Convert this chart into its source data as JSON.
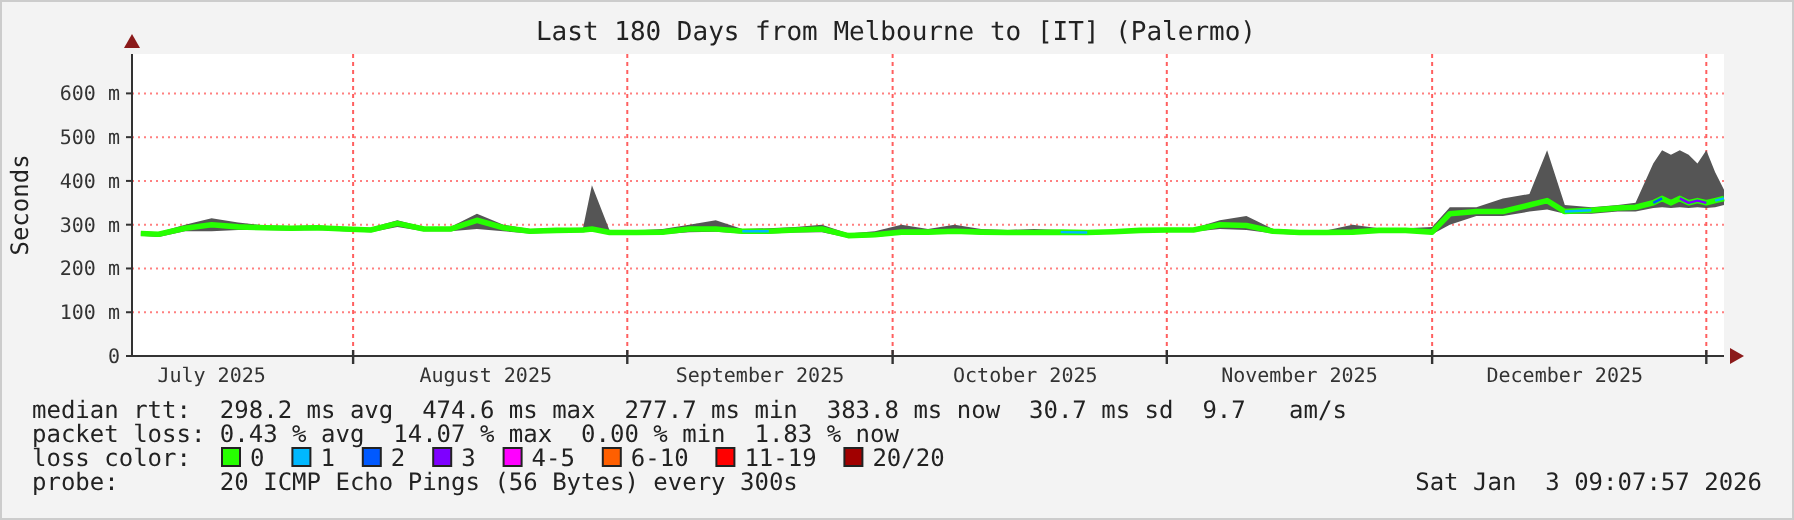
{
  "chart_data": {
    "type": "line",
    "title": "Last 180 Days from Melbourne to [IT] (Palermo)",
    "ylabel": "Seconds",
    "legend_title": "loss color:",
    "legend": "bottom",
    "grid": true,
    "line_style": "solid",
    "xlim": [
      "2025-07-07",
      "2026-01-03"
    ],
    "xticks": [
      {
        "value": "2025-07-16",
        "label": "July 2025"
      },
      {
        "value": "2025-08-01",
        "label": null
      },
      {
        "value": "2025-08-16",
        "label": "August 2025"
      },
      {
        "value": "2025-09-01",
        "label": null
      },
      {
        "value": "2025-09-16",
        "label": "September 2025"
      },
      {
        "value": "2025-10-01",
        "label": null
      },
      {
        "value": "2025-10-16",
        "label": "October 2025"
      },
      {
        "value": "2025-11-01",
        "label": null
      },
      {
        "value": "2025-11-16",
        "label": "November 2025"
      },
      {
        "value": "2025-12-01",
        "label": null
      },
      {
        "value": "2025-12-16",
        "label": "December 2025"
      },
      {
        "value": "2026-01-01",
        "label": null
      }
    ],
    "ylim": [
      0,
      690
    ],
    "yticks": [
      0,
      {
        "value": 100,
        "label": "100 m"
      },
      {
        "value": 200,
        "label": "200 m"
      },
      {
        "value": 300,
        "label": "300 m"
      },
      {
        "value": 400,
        "label": "400 m"
      },
      {
        "value": 500,
        "label": "500 m"
      },
      {
        "value": 600,
        "label": "600 m"
      }
    ],
    "x": [
      "2025-07-08",
      "2025-07-10",
      "2025-07-13",
      "2025-07-16",
      "2025-07-19",
      "2025-07-22",
      "2025-07-25",
      "2025-07-28",
      "2025-07-31",
      "2025-08-03",
      "2025-08-06",
      "2025-08-09",
      "2025-08-12",
      "2025-08-15",
      "2025-08-18",
      "2025-08-21",
      "2025-08-24",
      "2025-08-27",
      "2025-08-28",
      "2025-08-30",
      "2025-09-02",
      "2025-09-05",
      "2025-09-08",
      "2025-09-11",
      "2025-09-14",
      "2025-09-17",
      "2025-09-20",
      "2025-09-23",
      "2025-09-26",
      "2025-09-29",
      "2025-10-02",
      "2025-10-05",
      "2025-10-08",
      "2025-10-11",
      "2025-10-14",
      "2025-10-17",
      "2025-10-20",
      "2025-10-23",
      "2025-10-26",
      "2025-10-29",
      "2025-11-01",
      "2025-11-04",
      "2025-11-07",
      "2025-11-10",
      "2025-11-13",
      "2025-11-16",
      "2025-11-19",
      "2025-11-22",
      "2025-11-25",
      "2025-11-28",
      "2025-12-01",
      "2025-12-03",
      "2025-12-06",
      "2025-12-09",
      "2025-12-12",
      "2025-12-14",
      "2025-12-16",
      "2025-12-19",
      "2025-12-22",
      "2025-12-24",
      "2025-12-26",
      "2025-12-27",
      "2025-12-28",
      "2025-12-29",
      "2025-12-30",
      "2025-12-31",
      "2026-01-01",
      "2026-01-02",
      "2026-01-03"
    ],
    "series": [
      {
        "name": "0",
        "color": "#26ff00",
        "values": [
          280,
          278,
          292,
          300,
          295,
          293,
          292,
          293,
          290,
          288,
          303,
          290,
          290,
          310,
          293,
          285,
          287,
          288,
          290,
          282,
          282,
          283,
          290,
          290,
          285,
          285,
          288,
          290,
          275,
          277,
          283,
          283,
          285,
          283,
          282,
          282,
          283,
          282,
          284,
          287,
          288,
          288,
          300,
          298,
          285,
          282,
          282,
          283,
          287,
          287,
          283,
          325,
          330,
          330,
          345,
          355,
          330,
          333,
          338,
          340,
          350,
          360,
          350,
          360,
          350,
          355,
          350,
          355,
          360
        ],
        "lower": [
          275,
          272,
          285,
          285,
          288,
          288,
          287,
          288,
          285,
          283,
          295,
          285,
          285,
          290,
          285,
          280,
          282,
          283,
          285,
          278,
          278,
          278,
          283,
          284,
          280,
          280,
          282,
          283,
          270,
          272,
          278,
          278,
          280,
          278,
          277,
          277,
          278,
          277,
          280,
          283,
          284,
          284,
          290,
          288,
          280,
          277,
          277,
          278,
          283,
          283,
          278,
          300,
          320,
          320,
          330,
          335,
          325,
          325,
          330,
          330,
          338,
          340,
          338,
          340,
          338,
          340,
          338,
          340,
          345
        ],
        "upper": [
          285,
          283,
          300,
          315,
          305,
          298,
          297,
          298,
          295,
          293,
          310,
          295,
          295,
          325,
          300,
          290,
          292,
          293,
          390,
          287,
          287,
          290,
          300,
          310,
          290,
          292,
          295,
          300,
          280,
          285,
          300,
          290,
          300,
          290,
          288,
          290,
          288,
          287,
          288,
          291,
          292,
          292,
          310,
          320,
          290,
          287,
          287,
          300,
          292,
          292,
          295,
          340,
          340,
          360,
          370,
          470,
          345,
          340,
          345,
          350,
          440,
          470,
          460,
          470,
          460,
          440,
          470,
          420,
          380
        ]
      },
      {
        "name": "1",
        "color": "#00b8ff",
        "values": [
          null,
          null,
          null,
          null,
          null,
          null,
          null,
          null,
          null,
          null,
          null,
          null,
          null,
          null,
          null,
          null,
          null,
          null,
          null,
          null,
          null,
          null,
          null,
          null,
          285,
          285,
          null,
          null,
          null,
          null,
          null,
          null,
          null,
          null,
          null,
          null,
          283,
          282,
          null,
          null,
          null,
          null,
          null,
          null,
          null,
          null,
          null,
          null,
          null,
          null,
          null,
          null,
          null,
          null,
          null,
          null,
          330,
          333,
          null,
          null,
          null,
          null,
          null,
          null,
          null,
          null,
          null,
          355,
          360
        ]
      },
      {
        "name": "2",
        "color": "#0059ff",
        "values": [
          null,
          null,
          null,
          null,
          null,
          null,
          null,
          null,
          null,
          null,
          null,
          null,
          null,
          null,
          null,
          null,
          null,
          null,
          null,
          null,
          null,
          null,
          null,
          null,
          null,
          null,
          null,
          null,
          null,
          null,
          null,
          null,
          null,
          null,
          null,
          null,
          null,
          null,
          null,
          null,
          null,
          null,
          null,
          null,
          null,
          null,
          null,
          null,
          null,
          null,
          null,
          null,
          null,
          null,
          null,
          null,
          null,
          null,
          null,
          null,
          350,
          360,
          null,
          null,
          null,
          null,
          null,
          null,
          null
        ]
      },
      {
        "name": "3",
        "color": "#7e00ff",
        "values": [
          null,
          null,
          null,
          null,
          null,
          null,
          null,
          null,
          null,
          null,
          null,
          null,
          null,
          null,
          null,
          null,
          null,
          null,
          null,
          null,
          null,
          null,
          null,
          null,
          null,
          null,
          null,
          null,
          null,
          null,
          null,
          null,
          null,
          null,
          null,
          null,
          null,
          null,
          null,
          null,
          null,
          null,
          null,
          null,
          null,
          null,
          null,
          null,
          null,
          null,
          null,
          null,
          null,
          null,
          null,
          null,
          null,
          null,
          null,
          null,
          null,
          null,
          null,
          360,
          350,
          355,
          350,
          null,
          null
        ]
      }
    ],
    "annotations": [
      "median rtt:  298.2 ms avg  474.6 ms max  277.7 ms min  383.8 ms now  30.7 ms sd  9.7   am/s",
      "packet loss: 0.43 % avg  14.07 % max  0.00 % min  1.83 % now",
      "probe:       20 ICMP Echo Pings (56 Bytes) every 300s",
      "Sat Jan  3 09:07:57 2026",
      "4-5",
      "6-10",
      "11-19",
      "20/20"
    ]
  }
}
